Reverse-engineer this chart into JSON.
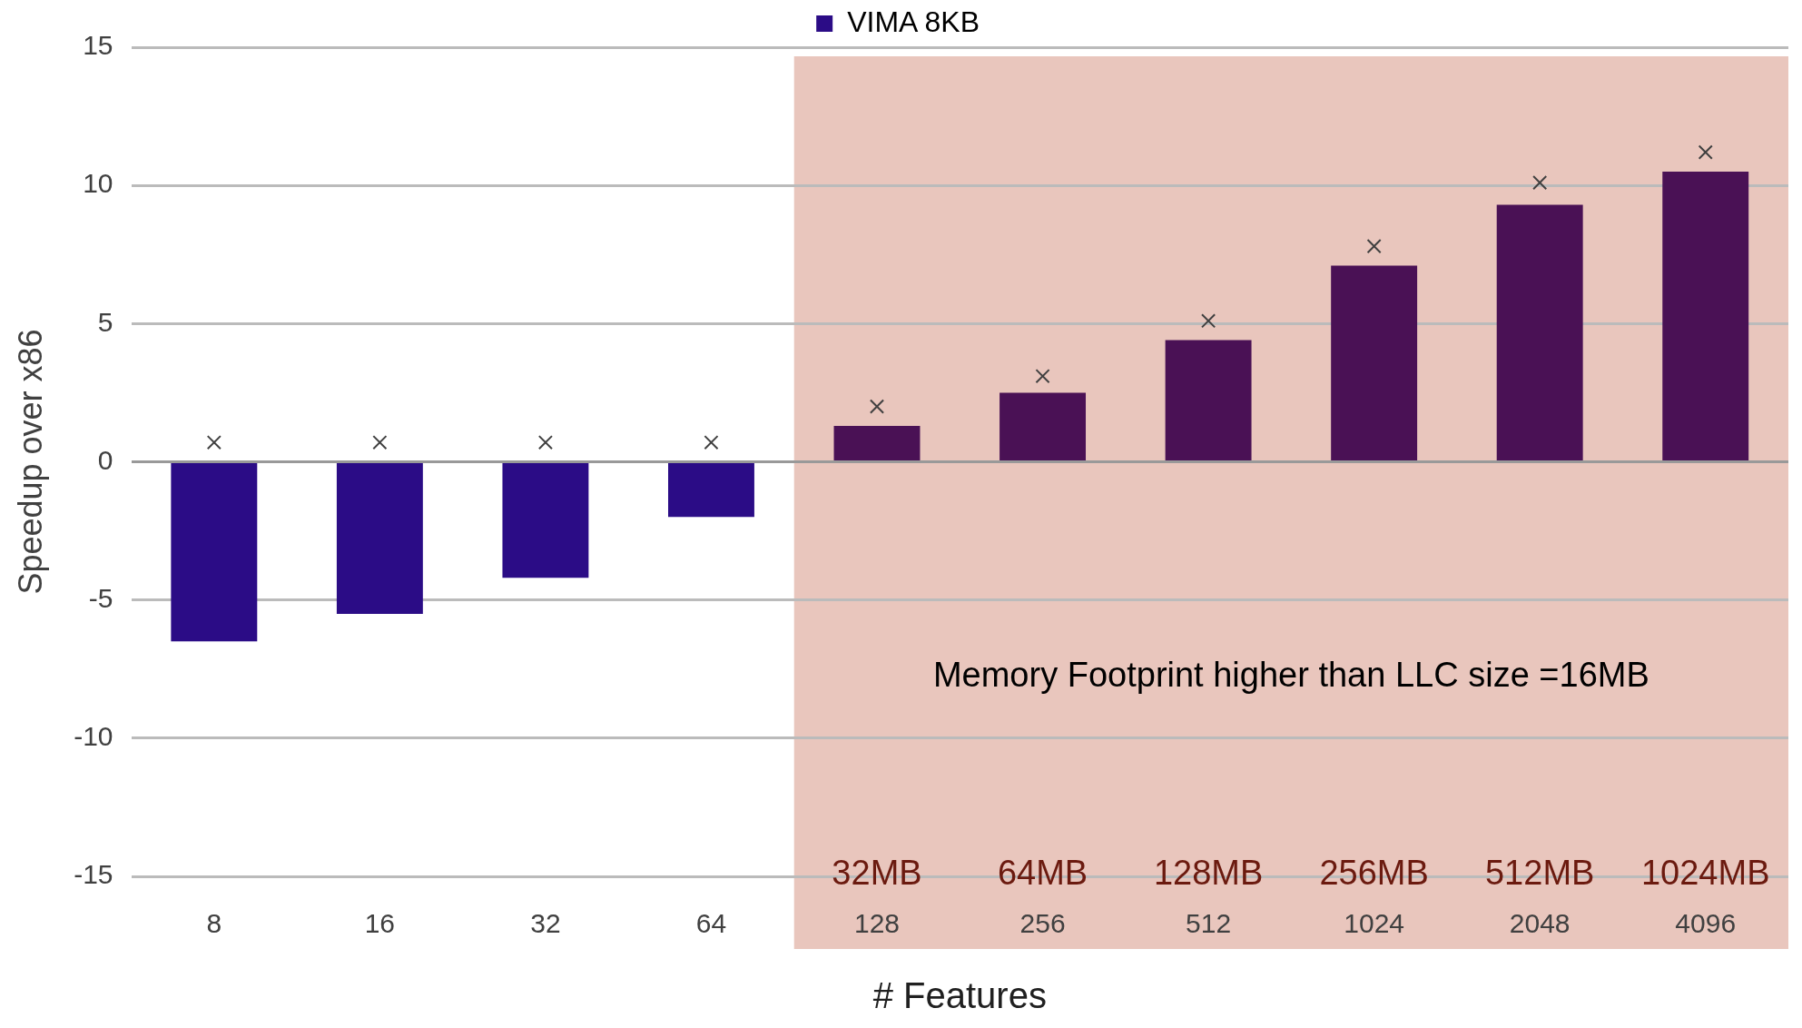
{
  "chart_data": {
    "type": "bar",
    "xlabel": "# Features",
    "ylabel": "Speedup over x86",
    "categories": [
      "8",
      "16",
      "32",
      "64",
      "128",
      "256",
      "512",
      "1024",
      "2048",
      "4096"
    ],
    "series": [
      {
        "name": "VIMA 8KB",
        "color": "#2b0c86",
        "colors": [
          "#2b0c86",
          "#2b0c86",
          "#2b0c86",
          "#2b0c86",
          "#4a1155",
          "#4a1155",
          "#4a1155",
          "#4a1155",
          "#4a1155",
          "#4a1155"
        ],
        "values": [
          -6.5,
          -5.5,
          -4.2,
          -2.0,
          1.3,
          2.5,
          4.4,
          7.1,
          9.3,
          10.5
        ]
      },
      {
        "type": "scatter",
        "color": "#404040",
        "marker": "cross",
        "values": [
          0.7,
          0.7,
          0.7,
          0.7,
          2.0,
          3.1,
          5.1,
          7.8,
          10.1,
          11.2
        ]
      }
    ],
    "ylim": [
      -15,
      15
    ],
    "yticks": [
      -15,
      -10,
      -5,
      0,
      5,
      10,
      15
    ],
    "grid": "y",
    "legend": "top",
    "bands": [
      {
        "axis": "x",
        "from": "128",
        "to": "4096",
        "label": "Memory Footprint higher than LLC size =16MB",
        "color": "#e9c6bd"
      }
    ],
    "annotations": [
      "32MB",
      "64MB",
      "128MB",
      "256MB",
      "512MB",
      "1024MB"
    ]
  }
}
